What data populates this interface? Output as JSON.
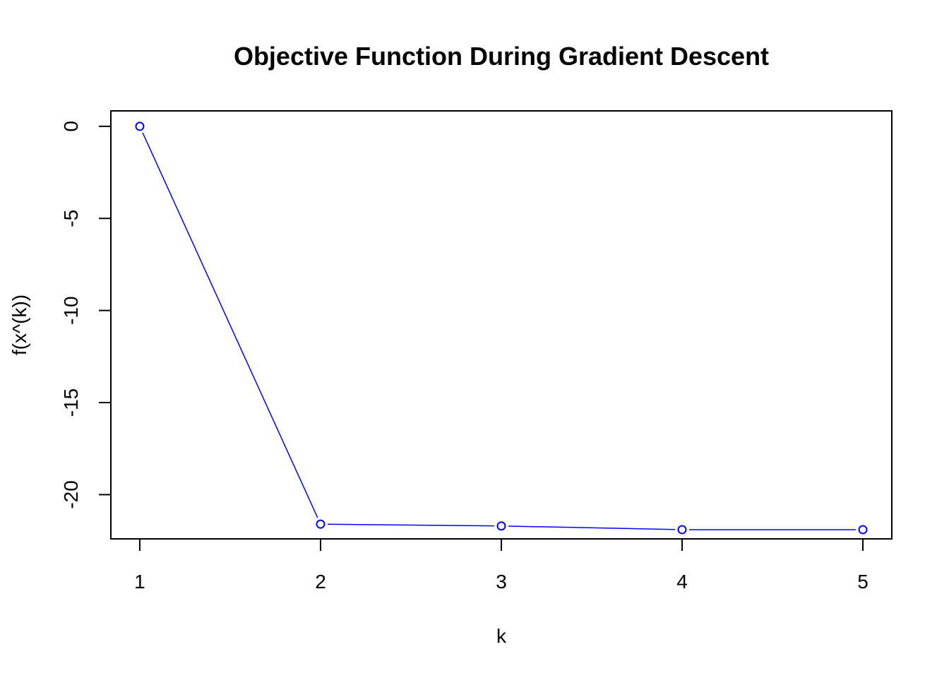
{
  "chart_data": {
    "type": "line",
    "title": "Objective Function During Gradient Descent",
    "xlabel": "k",
    "ylabel": "f(x^(k))",
    "x": [
      1,
      2,
      3,
      4,
      5
    ],
    "series": [
      {
        "values": [
          0,
          -21.6,
          -21.7,
          -21.9,
          -21.9
        ],
        "color": "#0000ff",
        "marker": "open-circle"
      }
    ],
    "xlim": [
      0.84,
      5.16
    ],
    "ylim": [
      -22.4,
      0.84
    ],
    "xticks": [
      1,
      2,
      3,
      4,
      5
    ],
    "yticks": [
      0,
      -5,
      -10,
      -15,
      -20
    ],
    "grid": false,
    "legend": "none"
  }
}
